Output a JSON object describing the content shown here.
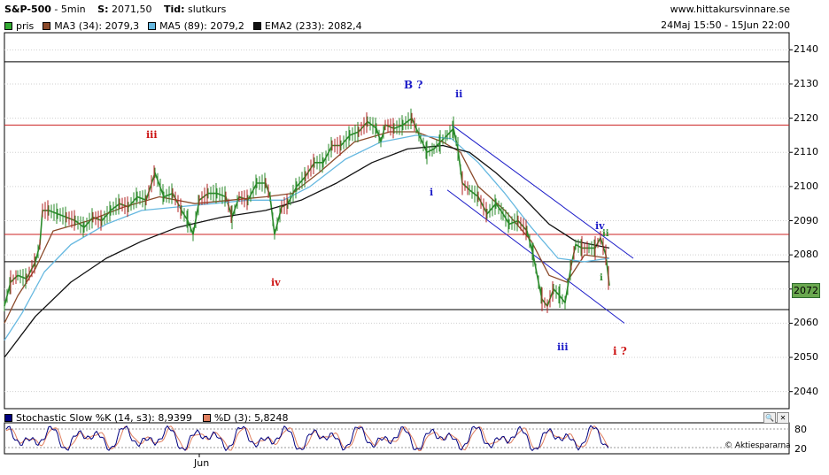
{
  "header": {
    "symbol": "S&P-500",
    "interval": "5min",
    "last_label": "S:",
    "last_value": "2071,50",
    "type_label": "Tid:",
    "type_value": "slutkurs",
    "site": "www.hittakursvinnare.se",
    "period": "24Maj 15:50 - 15Jun 22:00"
  },
  "legend": [
    {
      "label": "pris",
      "color": "#33aa33"
    },
    {
      "label": "MA3 (34): 2079,3",
      "color": "#8b4a2b"
    },
    {
      "label": "MA5 (89): 2079,2",
      "color": "#66b8e0"
    },
    {
      "label": "EMA2 (233): 2082,4",
      "color": "#111111"
    }
  ],
  "price_box": "2072",
  "wave_labels": [
    {
      "text": "B ?",
      "color": "#1c1cc8"
    },
    {
      "text": "ii",
      "color": "#1c1cc8"
    },
    {
      "text": "iii",
      "color": "#cc1111"
    },
    {
      "text": "i",
      "color": "#1c1cc8"
    },
    {
      "text": "iv",
      "color": "#1c1cc8"
    },
    {
      "text": "ii",
      "color": "#2e8b2e"
    },
    {
      "text": "i",
      "color": "#2e8b2e"
    },
    {
      "text": "iv",
      "color": "#cc1111"
    },
    {
      "text": "iii",
      "color": "#1c1cc8"
    },
    {
      "text": "i ?",
      "color": "#cc1111"
    }
  ],
  "stochastic": {
    "k_label": "Stochastic Slow %K (14, s3): 8,9399",
    "d_label": "%D (3): 5,8248",
    "k_color": "#000080",
    "d_color": "#e08060",
    "levels": [
      80,
      20
    ],
    "credit": "© Aktiespararna"
  },
  "chart_data": {
    "type": "line",
    "ylim": [
      2035,
      2145
    ],
    "yticks": [
      2040,
      2050,
      2060,
      2070,
      2080,
      2090,
      2100,
      2110,
      2120,
      2130,
      2140
    ],
    "xlabel": "",
    "ylabel": "",
    "x_tick_labels": [
      "Jun"
    ],
    "horizontal_levels": [
      {
        "value": 2136.5,
        "color": "#000000"
      },
      {
        "value": 2118,
        "color": "#cc2222"
      },
      {
        "value": 2086,
        "color": "#cc2222"
      },
      {
        "value": 2078,
        "color": "#000000"
      },
      {
        "value": 2064,
        "color": "#000000"
      }
    ],
    "channel": {
      "upper": [
        [
          510,
          2118
        ],
        [
          715,
          2079
        ]
      ],
      "lower": [
        [
          505,
          2099
        ],
        [
          705,
          2060
        ]
      ],
      "color": "#1c1cc8"
    },
    "series": [
      {
        "name": "pris",
        "color": "#2a8a2a",
        "points": [
          [
            5,
            2065
          ],
          [
            12,
            2072
          ],
          [
            20,
            2074
          ],
          [
            30,
            2073
          ],
          [
            40,
            2078
          ],
          [
            45,
            2083
          ],
          [
            48,
            2093
          ],
          [
            55,
            2093
          ],
          [
            65,
            2092
          ],
          [
            75,
            2091
          ],
          [
            85,
            2090
          ],
          [
            95,
            2088
          ],
          [
            105,
            2091
          ],
          [
            115,
            2090
          ],
          [
            125,
            2093
          ],
          [
            135,
            2095
          ],
          [
            145,
            2094
          ],
          [
            155,
            2097
          ],
          [
            165,
            2096
          ],
          [
            175,
            2104
          ],
          [
            185,
            2097
          ],
          [
            195,
            2098
          ],
          [
            205,
            2093
          ],
          [
            212,
            2090
          ],
          [
            218,
            2086
          ],
          [
            225,
            2096
          ],
          [
            235,
            2098
          ],
          [
            245,
            2098
          ],
          [
            255,
            2097
          ],
          [
            262,
            2091
          ],
          [
            270,
            2097
          ],
          [
            280,
            2096
          ],
          [
            290,
            2101
          ],
          [
            300,
            2101
          ],
          [
            305,
            2097
          ],
          [
            310,
            2086
          ],
          [
            318,
            2094
          ],
          [
            325,
            2095
          ],
          [
            335,
            2100
          ],
          [
            345,
            2103
          ],
          [
            355,
            2107
          ],
          [
            365,
            2107
          ],
          [
            375,
            2112
          ],
          [
            385,
            2112
          ],
          [
            395,
            2115
          ],
          [
            405,
            2116
          ],
          [
            415,
            2119
          ],
          [
            425,
            2117
          ],
          [
            430,
            2113
          ],
          [
            435,
            2118
          ],
          [
            445,
            2117
          ],
          [
            455,
            2118
          ],
          [
            465,
            2120
          ],
          [
            470,
            2117
          ],
          [
            475,
            2114
          ],
          [
            482,
            2110
          ],
          [
            490,
            2111
          ],
          [
            497,
            2113
          ],
          [
            505,
            2115
          ],
          [
            512,
            2117
          ],
          [
            517,
            2111
          ],
          [
            522,
            2101
          ],
          [
            530,
            2099
          ],
          [
            540,
            2097
          ],
          [
            550,
            2092
          ],
          [
            560,
            2095
          ],
          [
            568,
            2092
          ],
          [
            575,
            2089
          ],
          [
            585,
            2090
          ],
          [
            595,
            2087
          ],
          [
            602,
            2080
          ],
          [
            608,
            2072
          ],
          [
            612,
            2067
          ],
          [
            618,
            2065
          ],
          [
            625,
            2070
          ],
          [
            632,
            2068
          ],
          [
            638,
            2066
          ],
          [
            645,
            2077
          ],
          [
            650,
            2083
          ],
          [
            657,
            2082
          ],
          [
            665,
            2082
          ],
          [
            672,
            2082
          ],
          [
            678,
            2085
          ],
          [
            684,
            2080
          ],
          [
            688,
            2071
          ]
        ]
      },
      {
        "name": "MA3 (34)",
        "color": "#8b4a2b",
        "points": [
          [
            5,
            2060
          ],
          [
            20,
            2068
          ],
          [
            40,
            2076
          ],
          [
            60,
            2087
          ],
          [
            100,
            2090
          ],
          [
            140,
            2094
          ],
          [
            180,
            2097
          ],
          [
            220,
            2095
          ],
          [
            260,
            2096
          ],
          [
            300,
            2097
          ],
          [
            330,
            2098
          ],
          [
            360,
            2104
          ],
          [
            400,
            2113
          ],
          [
            440,
            2116
          ],
          [
            470,
            2116
          ],
          [
            500,
            2113
          ],
          [
            520,
            2110
          ],
          [
            540,
            2100
          ],
          [
            570,
            2093
          ],
          [
            600,
            2084
          ],
          [
            620,
            2074
          ],
          [
            640,
            2072
          ],
          [
            660,
            2080
          ],
          [
            688,
            2079
          ]
        ]
      },
      {
        "name": "MA5 (89)",
        "color": "#66b8e0",
        "points": [
          [
            5,
            2055
          ],
          [
            25,
            2063
          ],
          [
            50,
            2075
          ],
          [
            80,
            2083
          ],
          [
            120,
            2089
          ],
          [
            160,
            2093
          ],
          [
            200,
            2094
          ],
          [
            240,
            2095
          ],
          [
            280,
            2096
          ],
          [
            320,
            2096
          ],
          [
            350,
            2100
          ],
          [
            390,
            2108
          ],
          [
            430,
            2113
          ],
          [
            470,
            2115
          ],
          [
            510,
            2114
          ],
          [
            540,
            2107
          ],
          [
            570,
            2098
          ],
          [
            600,
            2088
          ],
          [
            630,
            2079
          ],
          [
            660,
            2078
          ],
          [
            688,
            2079
          ]
        ]
      },
      {
        "name": "EMA2 (233)",
        "color": "#111111",
        "points": [
          [
            5,
            2050
          ],
          [
            40,
            2062
          ],
          [
            80,
            2072
          ],
          [
            120,
            2079
          ],
          [
            160,
            2084
          ],
          [
            200,
            2088
          ],
          [
            250,
            2091
          ],
          [
            300,
            2093
          ],
          [
            340,
            2096
          ],
          [
            380,
            2101
          ],
          [
            420,
            2107
          ],
          [
            460,
            2111
          ],
          [
            500,
            2112
          ],
          [
            530,
            2110
          ],
          [
            560,
            2104
          ],
          [
            590,
            2097
          ],
          [
            620,
            2089
          ],
          [
            650,
            2084
          ],
          [
            688,
            2082
          ]
        ]
      }
    ]
  }
}
